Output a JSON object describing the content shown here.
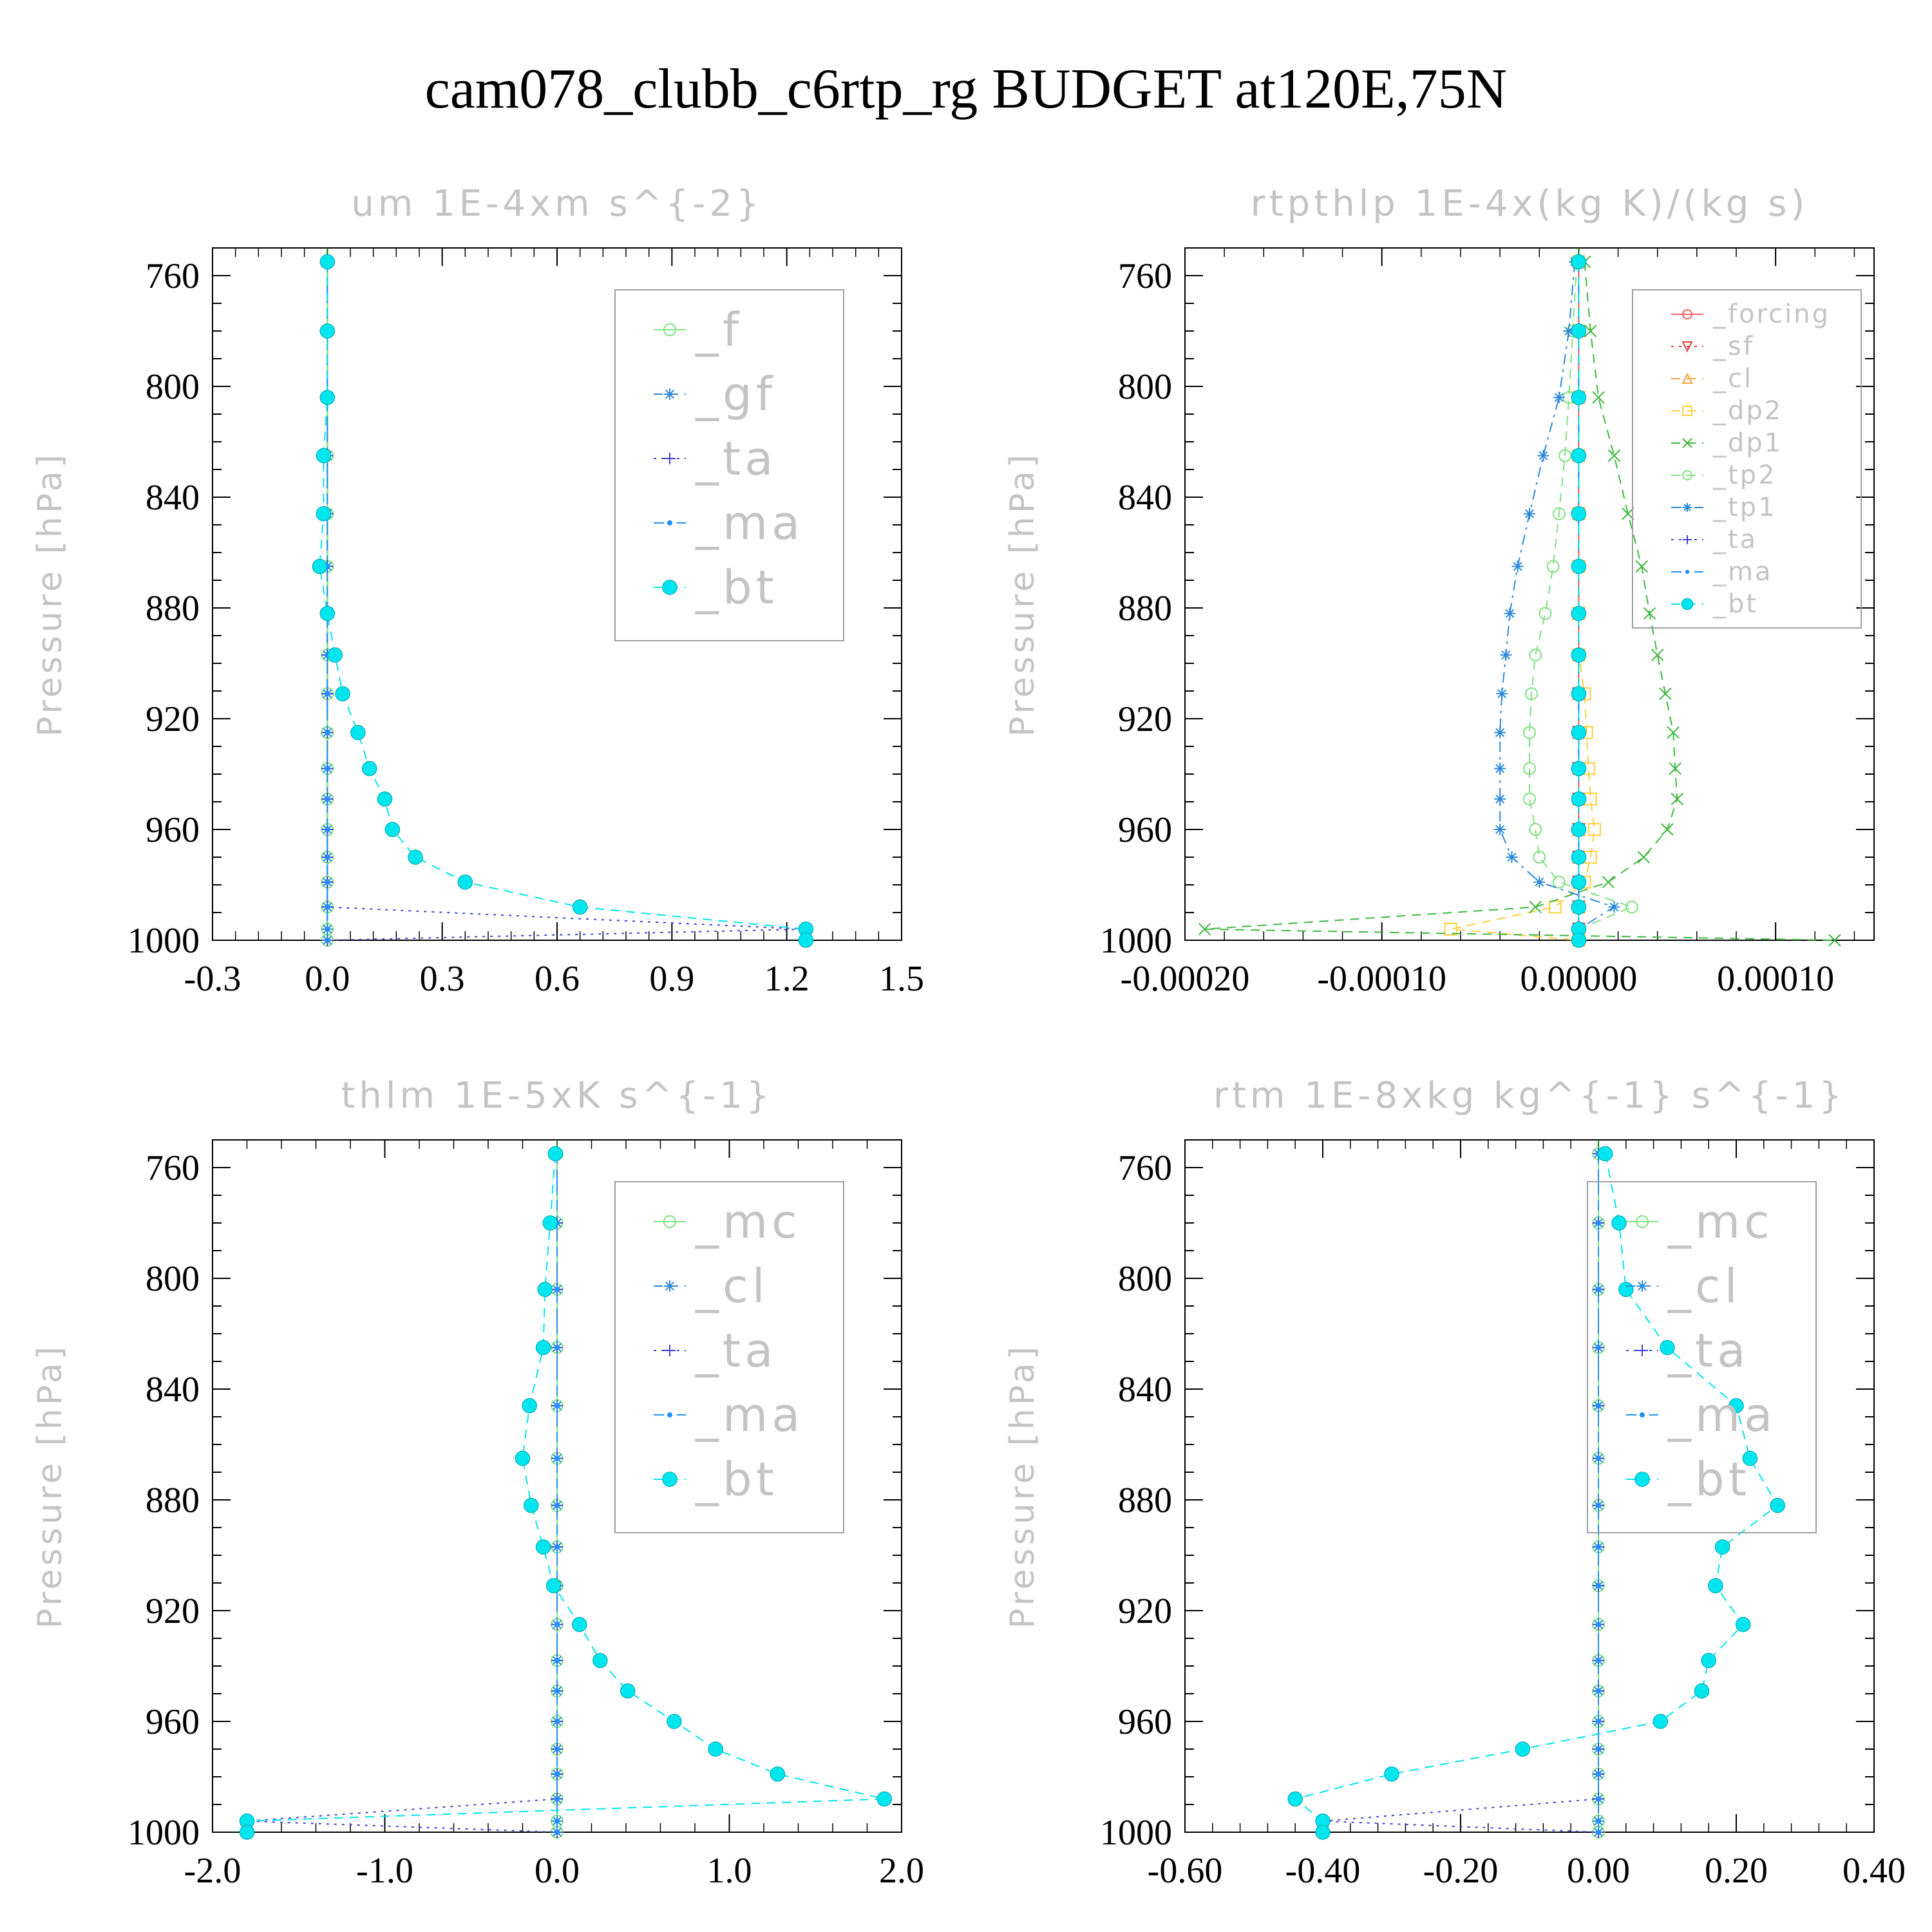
{
  "title": "cam078_clubb_c6rtp_rg  BUDGET at120E,75N",
  "chart_data": [
    {
      "type": "line",
      "title": "um  1E-4xm s^{-2}",
      "ylabel": "Pressure [hPa]",
      "xlim": [
        -0.3,
        1.5
      ],
      "ylim": [
        750,
        1000
      ],
      "y_reversed": true,
      "xticks": [
        "-0.3",
        "0.0",
        "0.3",
        "0.6",
        "0.9",
        "1.2",
        "1.5"
      ],
      "xtick_values": [
        -0.3,
        0.0,
        0.3,
        0.6,
        0.9,
        1.2,
        1.5
      ],
      "yticks": [
        "760",
        "800",
        "840",
        "880",
        "920",
        "960",
        "1000"
      ],
      "ytick_values": [
        760,
        800,
        840,
        880,
        920,
        960,
        1000
      ],
      "legend_position": "top-right",
      "legend_font": "large",
      "levels": [
        755,
        780,
        804,
        825,
        846,
        865,
        882,
        897,
        911,
        925,
        938,
        949,
        960,
        970,
        979,
        988,
        996,
        1000
      ],
      "series": [
        {
          "name": "_f",
          "color": "#7fe57f",
          "marker": "circle",
          "dash": "solid",
          "values": [
            0,
            0,
            0,
            0,
            0,
            0,
            0,
            0,
            0,
            0,
            0,
            0,
            0,
            0,
            0,
            0,
            0,
            0
          ]
        },
        {
          "name": "_gf",
          "color": "#2c89d9",
          "marker": "star",
          "dash": "dashed",
          "values": [
            0,
            0,
            0,
            0,
            0,
            0,
            0,
            0,
            0,
            0,
            0,
            0,
            0,
            0,
            0,
            0,
            0,
            0
          ]
        },
        {
          "name": "_ta",
          "color": "#4040d8",
          "marker": "plus",
          "dash": "dotted",
          "values": [
            0,
            0,
            0,
            0,
            0,
            0,
            0,
            0,
            0,
            0,
            0,
            0,
            0,
            0,
            0,
            0,
            1.25,
            0
          ]
        },
        {
          "name": "_ma",
          "color": "#1e90ff",
          "marker": "dot",
          "dash": "dashdot",
          "values": [
            0,
            0,
            0,
            0,
            0,
            0,
            0,
            0,
            0,
            0,
            0,
            0,
            0,
            0,
            0,
            0,
            0,
            0
          ]
        },
        {
          "name": "_bt",
          "color": "#00e5ee",
          "marker": "filled",
          "dash": "dashed",
          "values": [
            0,
            0,
            0,
            -0.01,
            -0.01,
            -0.02,
            0,
            0.02,
            0.04,
            0.08,
            0.11,
            0.15,
            0.17,
            0.23,
            0.36,
            0.66,
            1.25,
            1.25
          ]
        }
      ]
    },
    {
      "type": "line",
      "title": "rtpthlp  1E-4x(kg K)/(kg s)",
      "ylabel": "Pressure [hPa]",
      "xlim": [
        -0.0002,
        0.00015
      ],
      "ylim": [
        750,
        1000
      ],
      "y_reversed": true,
      "xticks": [
        "-0.00020",
        "-0.00010",
        "0.00000",
        "0.00010"
      ],
      "xtick_values": [
        -0.0002,
        -0.0001,
        0.0,
        0.0001
      ],
      "yticks": [
        "760",
        "800",
        "840",
        "880",
        "920",
        "960",
        "1000"
      ],
      "ytick_values": [
        760,
        800,
        840,
        880,
        920,
        960,
        1000
      ],
      "legend_position": "top-right",
      "legend_font": "small",
      "levels": [
        755,
        780,
        804,
        825,
        846,
        865,
        882,
        897,
        911,
        925,
        938,
        949,
        960,
        970,
        979,
        988,
        996,
        1000
      ],
      "series": [
        {
          "name": "_forcing",
          "color": "#ff6060",
          "marker": "circle",
          "dash": "solid",
          "values": [
            0,
            0,
            0,
            0,
            0,
            0,
            0,
            0,
            0,
            0,
            0,
            0,
            0,
            0,
            0,
            0,
            0,
            0
          ]
        },
        {
          "name": "_sf",
          "color": "#e04040",
          "marker": "tridown",
          "dash": "dotted",
          "values": [
            0,
            0,
            0,
            0,
            0,
            0,
            0,
            0,
            0,
            0,
            0,
            0,
            0,
            0,
            0,
            0,
            0,
            0
          ]
        },
        {
          "name": "_cl",
          "color": "#ffa040",
          "marker": "triangle",
          "dash": "dashed",
          "values": [
            0,
            0,
            0,
            0,
            0,
            0,
            0,
            0,
            0,
            0,
            0,
            0,
            0,
            0,
            0,
            0,
            0,
            0
          ]
        },
        {
          "name": "_dp2",
          "color": "#ffd040",
          "marker": "square",
          "dash": "dashed",
          "values": [
            0,
            0,
            0,
            0,
            0,
            0,
            0,
            0,
            3e-06,
            4e-06,
            5e-06,
            6e-06,
            8e-06,
            6e-06,
            3e-06,
            -1.2e-05,
            -6.5e-05,
            0
          ]
        },
        {
          "name": "_dp1",
          "color": "#3cb83c",
          "marker": "x",
          "dash": "dashed",
          "values": [
            3e-06,
            6e-06,
            1e-05,
            1.8e-05,
            2.5e-05,
            3.2e-05,
            3.6e-05,
            4e-05,
            4.4e-05,
            4.8e-05,
            4.9e-05,
            5e-05,
            4.5e-05,
            3.3e-05,
            1.5e-05,
            -2.2e-05,
            -0.00019,
            0.00013
          ]
        },
        {
          "name": "_tp2",
          "color": "#80e080",
          "marker": "circle",
          "dash": "dashed",
          "values": [
            -1e-06,
            -3e-06,
            -5e-06,
            -7e-06,
            -1e-05,
            -1.3e-05,
            -1.7e-05,
            -2.2e-05,
            -2.4e-05,
            -2.5e-05,
            -2.5e-05,
            -2.5e-05,
            -2.2e-05,
            -2e-05,
            -1e-05,
            2.7e-05,
            0.0,
            0.0
          ]
        },
        {
          "name": "_tp1",
          "color": "#2c89d9",
          "marker": "star",
          "dash": "dashdot",
          "values": [
            -2e-06,
            -5e-06,
            -1e-05,
            -1.8e-05,
            -2.5e-05,
            -3.1e-05,
            -3.5e-05,
            -3.7e-05,
            -3.9e-05,
            -4e-05,
            -4e-05,
            -4e-05,
            -4e-05,
            -3.4e-05,
            -2e-05,
            1.8e-05,
            0.0,
            0.0
          ]
        },
        {
          "name": "_ta",
          "color": "#4040d8",
          "marker": "plus",
          "dash": "dotted",
          "values": [
            0,
            0,
            0,
            0,
            0,
            0,
            0,
            0,
            0,
            0,
            0,
            0,
            0,
            0,
            0,
            0,
            0,
            0
          ]
        },
        {
          "name": "_ma",
          "color": "#1e90ff",
          "marker": "dot",
          "dash": "dashdot",
          "values": [
            0,
            0,
            0,
            0,
            0,
            0,
            0,
            0,
            0,
            0,
            0,
            0,
            0,
            0,
            0,
            0,
            0,
            0
          ]
        },
        {
          "name": "_bt",
          "color": "#00e5ee",
          "marker": "filled",
          "dash": "dashed",
          "values": [
            0,
            0,
            0,
            0,
            0,
            0,
            0,
            0,
            0,
            0,
            0,
            0,
            0,
            0,
            0,
            0,
            0,
            0
          ]
        }
      ]
    },
    {
      "type": "line",
      "title": "thlm  1E-5xK s^{-1}",
      "ylabel": "Pressure [hPa]",
      "xlim": [
        -2.0,
        2.0
      ],
      "ylim": [
        750,
        1000
      ],
      "y_reversed": true,
      "xticks": [
        "-2.0",
        "-1.0",
        "0.0",
        "1.0",
        "2.0"
      ],
      "xtick_values": [
        -2.0,
        -1.0,
        0.0,
        1.0,
        2.0
      ],
      "yticks": [
        "760",
        "800",
        "840",
        "880",
        "920",
        "960",
        "1000"
      ],
      "ytick_values": [
        760,
        800,
        840,
        880,
        920,
        960,
        1000
      ],
      "legend_position": "top-right",
      "legend_font": "large",
      "levels": [
        755,
        780,
        804,
        825,
        846,
        865,
        882,
        897,
        911,
        925,
        938,
        949,
        960,
        970,
        979,
        988,
        996,
        1000
      ],
      "series": [
        {
          "name": "_mc",
          "color": "#7fe57f",
          "marker": "circle",
          "dash": "solid",
          "values": [
            0,
            0,
            0,
            0,
            0,
            0,
            0,
            0,
            0,
            0,
            0,
            0,
            0,
            0,
            0,
            0,
            0,
            0
          ]
        },
        {
          "name": "_cl",
          "color": "#2c89d9",
          "marker": "star",
          "dash": "dashed",
          "values": [
            0,
            0,
            0,
            0,
            0,
            0,
            0,
            0,
            0,
            0,
            0,
            0,
            0,
            0,
            0,
            0,
            0,
            0
          ]
        },
        {
          "name": "_ta",
          "color": "#4040d8",
          "marker": "plus",
          "dash": "dotted",
          "values": [
            0,
            0,
            0,
            0,
            0,
            0,
            0,
            0,
            0,
            0,
            0,
            0,
            0,
            0,
            0,
            0,
            -1.8,
            0
          ]
        },
        {
          "name": "_ma",
          "color": "#1e90ff",
          "marker": "dot",
          "dash": "dashdot",
          "values": [
            0,
            0,
            0,
            0,
            0,
            0,
            0,
            0,
            0,
            0,
            0,
            0,
            0,
            0,
            0,
            0,
            0,
            0
          ]
        },
        {
          "name": "_bt",
          "color": "#00e5ee",
          "marker": "filled",
          "dash": "dashed",
          "values": [
            -0.01,
            -0.04,
            -0.07,
            -0.08,
            -0.16,
            -0.2,
            -0.15,
            -0.08,
            -0.02,
            0.13,
            0.25,
            0.41,
            0.68,
            0.92,
            1.28,
            1.9,
            -1.8,
            -1.8
          ]
        }
      ]
    },
    {
      "type": "line",
      "title": "rtm  1E-8xkg kg^{-1} s^{-1}",
      "ylabel": "Pressure [hPa]",
      "xlim": [
        -0.6,
        0.4
      ],
      "ylim": [
        750,
        1000
      ],
      "y_reversed": true,
      "xticks": [
        "-0.60",
        "-0.40",
        "-0.20",
        "0.00",
        "0.20",
        "0.40"
      ],
      "xtick_values": [
        -0.6,
        -0.4,
        -0.2,
        0.0,
        0.2,
        0.4
      ],
      "yticks": [
        "760",
        "800",
        "840",
        "880",
        "920",
        "960",
        "1000"
      ],
      "ytick_values": [
        760,
        800,
        840,
        880,
        920,
        960,
        1000
      ],
      "legend_position": "top-right",
      "legend_font": "large",
      "levels": [
        755,
        780,
        804,
        825,
        846,
        865,
        882,
        897,
        911,
        925,
        938,
        949,
        960,
        970,
        979,
        988,
        996,
        1000
      ],
      "series": [
        {
          "name": "_mc",
          "color": "#7fe57f",
          "marker": "circle",
          "dash": "solid",
          "values": [
            0,
            0,
            0,
            0,
            0,
            0,
            0,
            0,
            0,
            0,
            0,
            0,
            0,
            0,
            0,
            0,
            0,
            0
          ]
        },
        {
          "name": "_cl",
          "color": "#2c89d9",
          "marker": "star",
          "dash": "dashed",
          "values": [
            0,
            0,
            0,
            0,
            0,
            0,
            0,
            0,
            0,
            0,
            0,
            0,
            0,
            0,
            0,
            0,
            0,
            0
          ]
        },
        {
          "name": "_ta",
          "color": "#4040d8",
          "marker": "plus",
          "dash": "dotted",
          "values": [
            0,
            0,
            0,
            0,
            0,
            0,
            0,
            0,
            0,
            0,
            0,
            0,
            0,
            0,
            0,
            0,
            -0.4,
            0
          ]
        },
        {
          "name": "_ma",
          "color": "#1e90ff",
          "marker": "dot",
          "dash": "dashdot",
          "values": [
            0,
            0,
            0,
            0,
            0,
            0,
            0,
            0,
            0,
            0,
            0,
            0,
            0,
            0,
            0,
            0,
            0,
            0
          ]
        },
        {
          "name": "_bt",
          "color": "#00e5ee",
          "marker": "filled",
          "dash": "dashed",
          "values": [
            0.01,
            0.03,
            0.04,
            0.1,
            0.2,
            0.22,
            0.26,
            0.18,
            0.17,
            0.21,
            0.16,
            0.15,
            0.09,
            -0.11,
            -0.3,
            -0.44,
            -0.4,
            -0.4
          ]
        }
      ]
    }
  ]
}
